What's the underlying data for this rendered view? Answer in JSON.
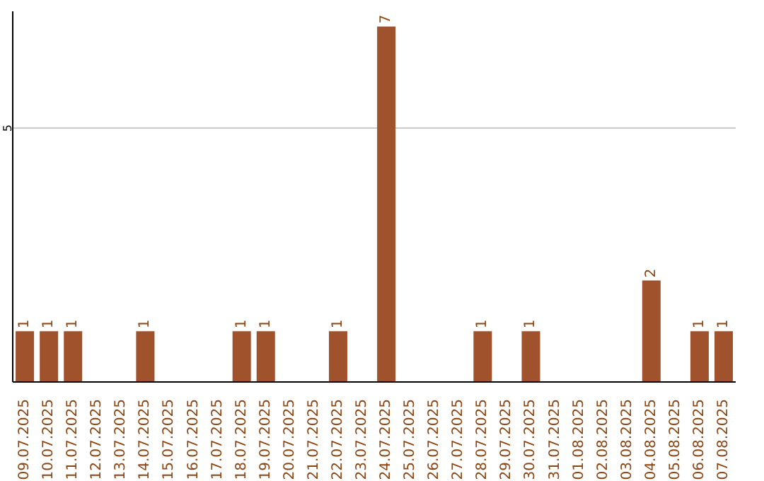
{
  "chart_data": {
    "type": "bar",
    "categories": [
      "09.07.2025",
      "10.07.2025",
      "11.07.2025",
      "12.07.2025",
      "13.07.2025",
      "14.07.2025",
      "15.07.2025",
      "16.07.2025",
      "17.07.2025",
      "18.07.2025",
      "19.07.2025",
      "20.07.2025",
      "21.07.2025",
      "22.07.2025",
      "23.07.2025",
      "24.07.2025",
      "25.07.2025",
      "26.07.2025",
      "27.07.2025",
      "28.07.2025",
      "29.07.2025",
      "30.07.2025",
      "31.07.2025",
      "01.08.2025",
      "02.08.2025",
      "03.08.2025",
      "04.08.2025",
      "05.08.2025",
      "06.08.2025",
      "07.08.2025"
    ],
    "values": [
      1,
      1,
      1,
      0,
      0,
      1,
      0,
      0,
      0,
      1,
      1,
      0,
      0,
      1,
      0,
      7,
      0,
      0,
      0,
      1,
      0,
      1,
      0,
      0,
      0,
      0,
      2,
      0,
      1,
      1
    ],
    "value_labels": [
      "1",
      "1",
      "1",
      null,
      null,
      "1",
      null,
      null,
      null,
      "1",
      "1",
      null,
      null,
      "1",
      null,
      "7",
      null,
      null,
      null,
      "1",
      null,
      "1",
      null,
      null,
      null,
      null,
      "2",
      null,
      "1",
      "1"
    ],
    "color": "#a0522d",
    "ylim": [
      0,
      7.3
    ],
    "yticks": [
      5
    ],
    "grid": "y"
  }
}
